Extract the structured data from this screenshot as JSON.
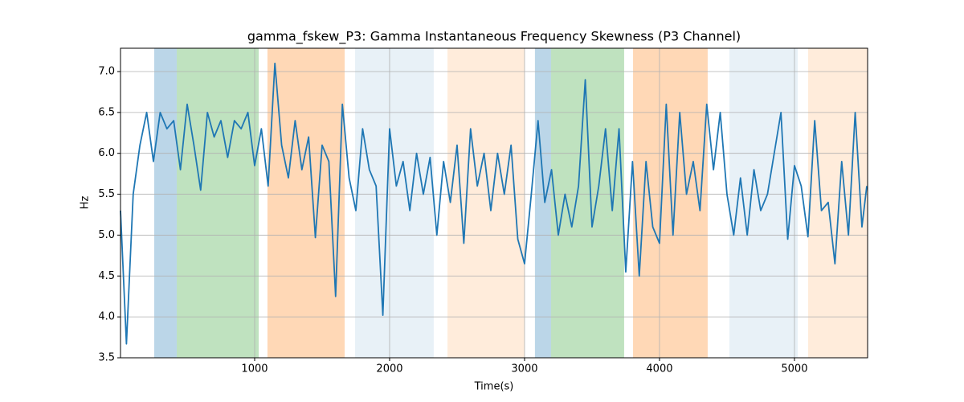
{
  "chart_data": {
    "type": "line",
    "title": "gamma_fskew_P3: Gamma Instantaneous Frequency Skewness (P3 Channel)",
    "x_label": "Time(s)",
    "y_label": "Hz",
    "color": "#1f77b4",
    "xlim": [
      6,
      5542
    ],
    "ylim": [
      3.5,
      7.285
    ],
    "xticks": [
      1000,
      2000,
      3000,
      4000,
      5000
    ],
    "yticks": [
      3.5,
      {
        "value": 4,
        "label": "4.0"
      },
      4.5,
      {
        "value": 5,
        "label": "5.0"
      },
      5.5,
      {
        "value": 6,
        "label": "6.0"
      },
      6.5,
      {
        "value": 7,
        "label": "7.0"
      }
    ],
    "grid": true,
    "spans": [
      {
        "start": 256,
        "end": 423,
        "color": "#1f77b4",
        "alpha": 0.3
      },
      {
        "start": 423,
        "end": 1030,
        "color": "#2ca02c",
        "alpha": 0.3
      },
      {
        "start": 1095,
        "end": 1667,
        "color": "#ff7f0e",
        "alpha": 0.3
      },
      {
        "start": 1744,
        "end": 2327,
        "color": "#1f77b4",
        "alpha": 0.1
      },
      {
        "start": 2429,
        "end": 3000,
        "color": "#ff7f0e",
        "alpha": 0.15
      },
      {
        "start": 3077,
        "end": 3196,
        "color": "#1f77b4",
        "alpha": 0.3
      },
      {
        "start": 3196,
        "end": 3738,
        "color": "#2ca02c",
        "alpha": 0.3
      },
      {
        "start": 3804,
        "end": 4357,
        "color": "#ff7f0e",
        "alpha": 0.3
      },
      {
        "start": 4518,
        "end": 5024,
        "color": "#1f77b4",
        "alpha": 0.1
      },
      {
        "start": 5101,
        "end": 5542,
        "color": "#ff7f0e",
        "alpha": 0.15
      }
    ],
    "x": [
      6,
      50,
      100,
      150,
      200,
      250,
      300,
      350,
      400,
      450,
      500,
      550,
      600,
      650,
      700,
      750,
      800,
      850,
      900,
      950,
      1000,
      1050,
      1100,
      1150,
      1200,
      1250,
      1300,
      1350,
      1400,
      1450,
      1500,
      1550,
      1600,
      1650,
      1700,
      1750,
      1800,
      1850,
      1900,
      1950,
      2000,
      2050,
      2100,
      2150,
      2200,
      2250,
      2300,
      2350,
      2400,
      2450,
      2500,
      2550,
      2600,
      2650,
      2700,
      2750,
      2800,
      2850,
      2900,
      2950,
      3000,
      3050,
      3100,
      3150,
      3200,
      3250,
      3300,
      3350,
      3400,
      3450,
      3500,
      3550,
      3600,
      3650,
      3700,
      3750,
      3800,
      3850,
      3900,
      3950,
      4000,
      4050,
      4100,
      4150,
      4200,
      4250,
      4300,
      4350,
      4400,
      4450,
      4500,
      4550,
      4600,
      4650,
      4700,
      4750,
      4800,
      4850,
      4900,
      4950,
      5000,
      5050,
      5100,
      5150,
      5200,
      5250,
      5300,
      5350,
      5400,
      5450,
      5500,
      5536
    ],
    "values": [
      5.3,
      3.67,
      5.5,
      6.1,
      6.5,
      5.9,
      6.5,
      6.3,
      6.4,
      5.8,
      6.6,
      6.1,
      5.55,
      6.5,
      6.2,
      6.4,
      5.95,
      6.4,
      6.3,
      6.5,
      5.85,
      6.3,
      5.6,
      7.1,
      6.1,
      5.7,
      6.4,
      5.8,
      6.2,
      4.97,
      6.1,
      5.9,
      4.25,
      6.6,
      5.7,
      5.3,
      6.3,
      5.8,
      5.6,
      4.02,
      6.3,
      5.6,
      5.9,
      5.3,
      6.0,
      5.5,
      5.95,
      5.0,
      5.9,
      5.4,
      6.1,
      4.9,
      6.3,
      5.6,
      6.0,
      5.3,
      6.0,
      5.5,
      6.1,
      4.95,
      4.65,
      5.5,
      6.4,
      5.4,
      5.8,
      5.0,
      5.5,
      5.1,
      5.6,
      6.9,
      5.1,
      5.6,
      6.3,
      5.3,
      6.3,
      4.55,
      5.9,
      4.5,
      5.9,
      5.1,
      4.9,
      6.6,
      5.0,
      6.5,
      5.5,
      5.9,
      5.3,
      6.6,
      5.8,
      6.5,
      5.5,
      5.0,
      5.7,
      5.0,
      5.8,
      5.3,
      5.5,
      6.0,
      6.5,
      4.95,
      5.85,
      5.6,
      4.98,
      6.4,
      5.3,
      5.4,
      4.65,
      5.9,
      5.0,
      6.5,
      5.1,
      5.6
    ]
  }
}
